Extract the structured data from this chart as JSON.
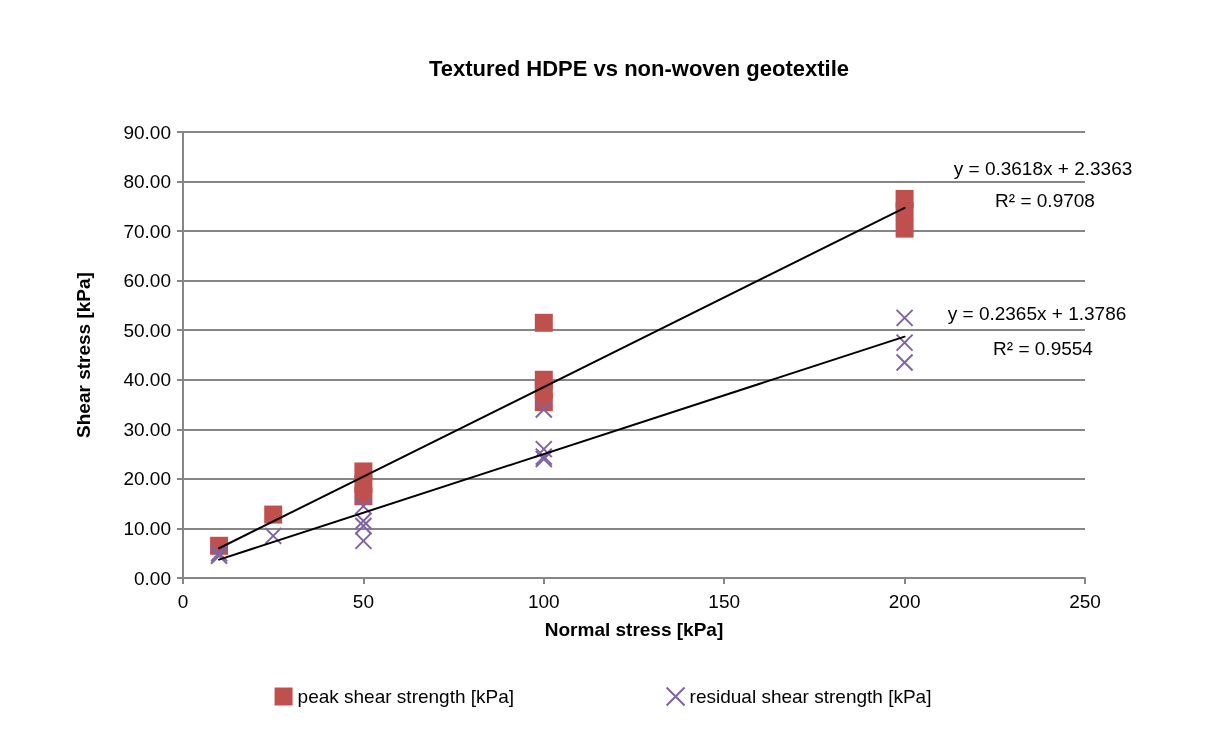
{
  "chart_data": {
    "type": "scatter",
    "title": "Textured HDPE vs non-woven geotextile",
    "xlabel": "Normal stress [kPa]",
    "ylabel": "Shear stress [kPa]",
    "xlim": [
      0,
      250
    ],
    "xticks": [
      0,
      50,
      100,
      150,
      200,
      250
    ],
    "ylim": [
      0,
      90
    ],
    "yticks": [
      {
        "value": 0,
        "label": "0.00"
      },
      {
        "value": 10,
        "label": "10.00"
      },
      {
        "value": 20,
        "label": "20.00"
      },
      {
        "value": 30,
        "label": "30.00"
      },
      {
        "value": 40,
        "label": "40.00"
      },
      {
        "value": 50,
        "label": "50.00"
      },
      {
        "value": 60,
        "label": "60.00"
      },
      {
        "value": 70,
        "label": "70.00"
      },
      {
        "value": 80,
        "label": "80.00"
      },
      {
        "value": 90,
        "label": "90.00"
      }
    ],
    "grid": "y",
    "legend": "bottom",
    "series": [
      {
        "name": "peak shear strength [kPa]",
        "color": "#c0504d",
        "marker": "square",
        "x": [
          10,
          25,
          50,
          50,
          50,
          100,
          100,
          100,
          100,
          200,
          200,
          200
        ],
        "values": [
          6.5,
          12.8,
          21.5,
          19,
          16.5,
          51.5,
          40,
          38,
          35.5,
          76.5,
          74,
          70.5
        ]
      },
      {
        "name": "residual shear strength [kPa]",
        "color": "#8064a2",
        "marker": "cross",
        "x": [
          10,
          10,
          25,
          50,
          50,
          50,
          50,
          100,
          100,
          100,
          100,
          200,
          200,
          200
        ],
        "values": [
          4.5,
          5,
          8.5,
          14.5,
          11.5,
          10.5,
          7.5,
          34,
          26,
          24.5,
          24,
          52.5,
          47.5,
          43.5
        ]
      },
      {
        "type": "line",
        "color": "#000000",
        "marker": "none",
        "x": [
          10,
          200
        ],
        "values": [
          6,
          74.7
        ]
      },
      {
        "type": "line",
        "color": "#000000",
        "marker": "none",
        "x": [
          10,
          200
        ],
        "values": [
          3.7,
          48.7
        ]
      }
    ],
    "annotations": [
      "y = 0.3618x + 2.3363",
      "R² = 0.9708",
      "y = 0.2365x + 1.3786",
      "R² = 0.9554"
    ]
  }
}
